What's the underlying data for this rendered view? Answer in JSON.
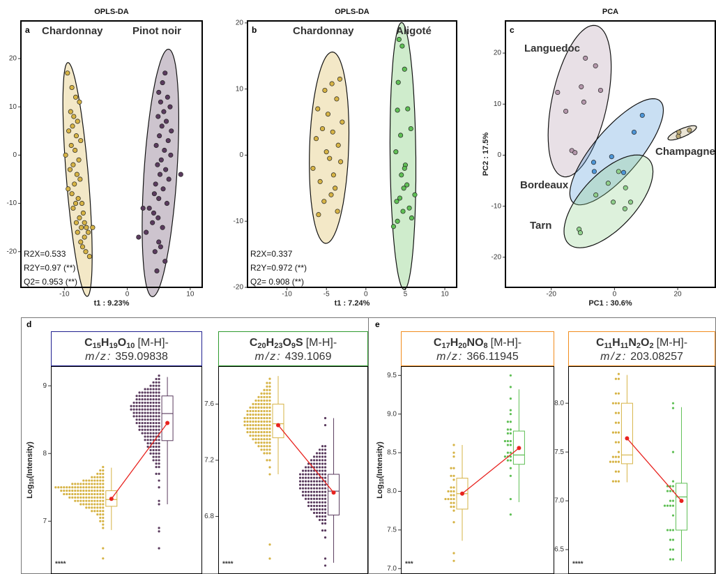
{
  "chart_data": [
    {
      "type": "scatter",
      "panel": "a",
      "title": "OPLS-DA",
      "xlabel": "t1 : 9.23%",
      "xlim": [
        -16.9,
        11.9
      ],
      "ylim": [
        -27.4,
        27.8
      ],
      "xticks": [
        -10,
        0,
        10
      ],
      "yticks": [
        -20,
        -10,
        0,
        10,
        20
      ],
      "annotations": [
        "R2X=0.533",
        "R2Y=0.97 (**)",
        "Q2= 0.953 (**)"
      ],
      "series": [
        {
          "name": "Chardonnay",
          "color": "#d6b345",
          "x": [
            -9.5,
            -8.8,
            -8.2,
            -7.6,
            -9.0,
            -8.5,
            -7.9,
            -8.7,
            -9.3,
            -8.1,
            -7.4,
            -8.9,
            -8.3,
            -9.8,
            -7.7,
            -8.6,
            -9.1,
            -8.0,
            -7.5,
            -8.4,
            -9.4,
            -8.8,
            -7.8,
            -8.2,
            -7.2,
            -8.6,
            -7.0,
            -7.6,
            -8.1,
            -6.8,
            -7.3,
            -6.5,
            -7.9,
            -5.5,
            -6.2,
            -6.8,
            -7.4,
            -7.1,
            -6.0,
            -6.6
          ],
          "y": [
            17,
            14,
            12,
            11,
            9,
            8,
            7,
            6,
            5,
            4,
            3,
            2,
            1,
            0,
            -1,
            -2,
            -3,
            -4,
            -5,
            -6,
            -7,
            -8,
            -9,
            -10,
            -10,
            -11,
            -12,
            -13,
            -14,
            -14,
            -15,
            -15,
            -16,
            -15,
            -16,
            -17,
            -18,
            -19,
            -21,
            -20
          ]
        },
        {
          "name": "Pinot noir",
          "color": "#5a3b5e",
          "x": [
            6.0,
            5.6,
            5.0,
            6.4,
            5.3,
            6.8,
            5.8,
            4.9,
            6.2,
            5.5,
            7.0,
            5.1,
            6.5,
            4.6,
            5.9,
            6.9,
            5.4,
            4.8,
            6.1,
            5.2,
            6.6,
            4.5,
            5.7,
            4.3,
            5.0,
            6.3,
            3.5,
            4.2,
            2.5,
            1.8,
            3.0,
            4.0,
            5.6,
            5.0,
            4.4,
            6.0,
            8.5,
            4.7,
            5.3,
            4.9
          ],
          "y": [
            17,
            15,
            13,
            12,
            11,
            10,
            9,
            8,
            7,
            6,
            5,
            4,
            3,
            2,
            1,
            0,
            -1,
            -2,
            -3,
            -4,
            -5,
            -6,
            -7,
            -8,
            -9,
            -10,
            -11,
            -12,
            -11,
            -17,
            -16,
            -14,
            -15,
            -18,
            -20,
            -22,
            -4,
            -24,
            -19,
            -13
          ]
        }
      ]
    },
    {
      "type": "scatter",
      "panel": "b",
      "title": "OPLS-DA",
      "xlabel": "t1 : 7.24%",
      "xlim": [
        -15.0,
        11.5
      ],
      "ylim": [
        -20.0,
        20.3
      ],
      "xticks": [
        -10,
        -5,
        0,
        5,
        10
      ],
      "yticks": [
        -20,
        -10,
        0,
        10,
        20
      ],
      "annotations": [
        "R2X=0.337",
        "R2Y=0.972 (**)",
        "Q2= 0.908 (**)"
      ],
      "series": [
        {
          "name": "Chardonnay",
          "color": "#d6b345",
          "x": [
            -3.3,
            -4.3,
            -5.2,
            -3.7,
            -6.1,
            -4.8,
            -3.0,
            -5.5,
            -4.2,
            -6.3,
            -3.5,
            -5.0,
            -4.6,
            -3.2,
            -6.7,
            -4.1,
            -5.8,
            -3.9,
            -4.4,
            -5.3,
            -3.6,
            -6.0
          ],
          "y": [
            11.5,
            10.8,
            9.8,
            8.5,
            7,
            6.2,
            5,
            4,
            3.5,
            2.5,
            1.5,
            0.5,
            -0.5,
            -1,
            -2,
            -3,
            -4,
            -5,
            -6,
            -7,
            -8.5,
            -9
          ]
        },
        {
          "name": "Aligoté",
          "color": "#5fbf55",
          "x": [
            4.2,
            4.6,
            4.9,
            4.1,
            5.3,
            4.0,
            5.7,
            4.4,
            3.8,
            5.0,
            4.5,
            5.2,
            4.8,
            6.2,
            4.3,
            3.9,
            5.5,
            4.7,
            4.0,
            3.5,
            5.8,
            4.9
          ],
          "y": [
            17.5,
            16.5,
            13,
            11,
            7,
            6.8,
            4,
            3,
            0.5,
            -1.5,
            -3,
            -4.5,
            -5,
            -6,
            -6.5,
            -7,
            -8,
            -8.5,
            -10,
            -10.8,
            -9.5,
            -2
          ]
        }
      ]
    },
    {
      "type": "scatter",
      "panel": "c",
      "title": "PCA",
      "xlabel": "PC1 : 30.6%",
      "ylabel": "PC2 : 17.5%",
      "xlim": [
        -34.5,
        31.9
      ],
      "ylim": [
        -25.9,
        26.3
      ],
      "xticks": [
        -20,
        0,
        20
      ],
      "yticks": [
        -20,
        -10,
        0,
        10,
        20
      ],
      "series": [
        {
          "name": "Languedoc",
          "color": "#b497ab",
          "x": [
            -18.0,
            -15.4,
            -10.5,
            -9.2,
            -9.7,
            -4.4,
            -13.5,
            -12.5,
            -6.0
          ],
          "y": [
            12.3,
            8.6,
            13.4,
            19.0,
            10.4,
            12.7,
            0.9,
            0.5,
            17.5
          ]
        },
        {
          "name": "Bordeaux",
          "color": "#4d95d6",
          "x": [
            -6.6,
            -6.4,
            -0.9,
            2.9,
            6.2,
            8.8
          ],
          "y": [
            -1.4,
            -3.2,
            -0.3,
            -3.4,
            4.5,
            7.8
          ]
        },
        {
          "name": "Tarn",
          "color": "#8fcf8b",
          "x": [
            -5.9,
            -11.2,
            -10.8,
            -0.4,
            1.3,
            3.5,
            5.1,
            3.3,
            -2.0
          ],
          "y": [
            -7.8,
            -14.5,
            -15.2,
            -9.2,
            -3.2,
            -6.4,
            -9.2,
            -10.5,
            -5.5
          ]
        },
        {
          "name": "Champagne",
          "color": "#b9a772",
          "x": [
            20.4,
            20.2,
            23.7
          ],
          "y": [
            4.5,
            3.7,
            4.9
          ]
        }
      ]
    },
    {
      "type": "box",
      "panel": "d",
      "significance": "****",
      "ylabel_parts": [
        "Log",
        "10",
        "(Intensity)"
      ],
      "header": {
        "formula": [
          "C",
          "15",
          "H",
          "19",
          "O",
          "10"
        ],
        "ion": "[M-H]-",
        "mz_label": "m/z:",
        "mz": "359.09838",
        "color": "#1f1f8f"
      },
      "ylim": [
        6.22,
        9.29
      ],
      "yticks": [
        7,
        8,
        9
      ],
      "series": [
        {
          "color": "#d6b345",
          "dots": {
            "values": [
              7.8,
              7.75,
              7.7,
              7.65,
              7.6,
              7.55,
              7.5,
              7.45,
              7.4,
              7.35,
              7.3,
              7.25,
              7.2,
              7.15,
              7.1,
              7.05,
              7.0,
              6.95,
              6.9,
              6.6,
              6.45
            ],
            "counts": [
              1,
              2,
              3,
              5,
              8,
              12,
              18,
              16,
              15,
              13,
              11,
              9,
              7,
              5,
              3,
              2,
              2,
              1,
              1,
              1,
              1
            ]
          },
          "box": {
            "whislo": 6.87,
            "q1": 7.22,
            "med": 7.32,
            "q3": 7.45,
            "whishi": 7.79
          },
          "mean": 7.33
        },
        {
          "color": "#5a3b5e",
          "dots": {
            "values": [
              9.15,
              9.1,
              9.05,
              9.0,
              8.95,
              8.9,
              8.85,
              8.8,
              8.75,
              8.7,
              8.65,
              8.6,
              8.55,
              8.5,
              8.45,
              8.4,
              8.35,
              8.3,
              8.25,
              8.2,
              8.15,
              8.1,
              8.05,
              8.0,
              7.95,
              7.9,
              7.85,
              7.8,
              7.7,
              7.6,
              7.5,
              7.3,
              7.25,
              6.9,
              6.85,
              6.6
            ],
            "counts": [
              1,
              2,
              3,
              4,
              6,
              8,
              9,
              9,
              10,
              11,
              11,
              10,
              10,
              9,
              9,
              8,
              8,
              7,
              6,
              6,
              5,
              5,
              4,
              4,
              3,
              3,
              2,
              2,
              2,
              1,
              1,
              1,
              1,
              1,
              1,
              1
            ]
          },
          "box": {
            "whislo": 7.25,
            "q1": 8.19,
            "med": 8.59,
            "q3": 8.85,
            "whishi": 9.13
          },
          "mean": 8.45
        }
      ]
    },
    {
      "type": "box",
      "significance": "****",
      "header": {
        "formula": [
          "C",
          "20",
          "H",
          "23",
          "O",
          "9",
          "S"
        ],
        "ion": "[M-H]-",
        "mz_label": "m/z:",
        "mz": "439.1069",
        "color": "#2e9a2e"
      },
      "ylim": [
        6.39,
        7.87
      ],
      "yticks": [
        6.8,
        7.2,
        7.6
      ],
      "series": [
        {
          "color": "#d6b345",
          "dots": {
            "values": [
              7.78,
              7.75,
              7.725,
              7.7,
              7.675,
              7.65,
              7.625,
              7.6,
              7.575,
              7.55,
              7.525,
              7.5,
              7.475,
              7.45,
              7.425,
              7.4,
              7.375,
              7.35,
              7.325,
              7.3,
              7.275,
              7.25,
              7.2,
              7.15,
              7.1,
              6.6,
              6.5
            ],
            "counts": [
              1,
              2,
              2,
              3,
              4,
              5,
              6,
              7,
              8,
              9,
              9,
              10,
              10,
              10,
              9,
              9,
              8,
              7,
              6,
              5,
              4,
              3,
              2,
              1,
              1,
              1,
              1
            ]
          },
          "box": {
            "whislo": 7.1,
            "q1": 7.36,
            "med": 7.46,
            "q3": 7.6,
            "whishi": 7.8
          },
          "mean": 7.45
        },
        {
          "color": "#5a3b5e",
          "dots": {
            "values": [
              7.5,
              7.45,
              7.3,
              7.275,
              7.25,
              7.225,
              7.2,
              7.175,
              7.15,
              7.125,
              7.1,
              7.075,
              7.05,
              7.025,
              7.0,
              6.975,
              6.95,
              6.925,
              6.9,
              6.875,
              6.85,
              6.825,
              6.8,
              6.775,
              6.75,
              6.7,
              6.65,
              6.5,
              6.45
            ],
            "counts": [
              1,
              1,
              2,
              3,
              4,
              5,
              6,
              7,
              8,
              9,
              10,
              10,
              10,
              10,
              10,
              9,
              9,
              8,
              7,
              7,
              6,
              5,
              4,
              3,
              2,
              2,
              1,
              1,
              1
            ]
          },
          "box": {
            "whislo": 6.47,
            "q1": 6.81,
            "med": 6.98,
            "q3": 7.1,
            "whishi": 7.5
          },
          "mean": 6.97
        }
      ]
    },
    {
      "type": "box",
      "panel": "e",
      "significance": "***",
      "ylabel_parts": [
        "Log",
        "10",
        "(Intensity)"
      ],
      "header": {
        "formula": [
          "C",
          "17",
          "H",
          "20",
          "NO",
          "8"
        ],
        "ion": "[M-H]-",
        "mz_label": "m/z:",
        "mz": "366.11945",
        "color": "#f28c1c"
      },
      "ylim": [
        6.93,
        9.62
      ],
      "yticks": [
        {
          "value": 7,
          "label": "7.0"
        },
        7.5,
        {
          "value": 8,
          "label": "8.0"
        },
        8.5,
        {
          "value": 9,
          "label": "9.0"
        },
        9.5
      ],
      "series": [
        {
          "color": "#d6b345",
          "dots": {
            "values": [
              8.6,
              8.5,
              8.45,
              8.3,
              8.2,
              8.15,
              8.05,
              8.0,
              7.95,
              7.9,
              7.85,
              7.8,
              7.75,
              7.6,
              7.2,
              7.1
            ],
            "counts": [
              1,
              1,
              1,
              2,
              2,
              1,
              2,
              3,
              2,
              4,
              2,
              2,
              1,
              1,
              1,
              1
            ]
          },
          "box": {
            "whislo": 7.36,
            "q1": 7.77,
            "med": 7.97,
            "q3": 8.17,
            "whishi": 8.6
          },
          "mean": 7.97
        },
        {
          "color": "#5fbf55",
          "dots": {
            "values": [
              9.5,
              9.35,
              9.2,
              9.05,
              9.0,
              8.9,
              8.8,
              8.75,
              8.65,
              8.6,
              8.5,
              8.45,
              8.4,
              8.3,
              8.2,
              7.9,
              7.7
            ],
            "counts": [
              1,
              1,
              1,
              1,
              1,
              2,
              2,
              2,
              3,
              2,
              2,
              3,
              2,
              1,
              1,
              1,
              1
            ]
          },
          "box": {
            "whislo": 7.86,
            "q1": 8.35,
            "med": 8.47,
            "q3": 8.78,
            "whishi": 9.32
          },
          "mean": 8.56
        }
      ]
    },
    {
      "type": "box",
      "significance": "****",
      "header": {
        "formula": [
          "C",
          "11",
          "H",
          "11",
          "N",
          "2",
          "O",
          "2"
        ],
        "ion": "[M-H]-",
        "mz_label": "m/z:",
        "mz": "203.08257",
        "color": "#f28c1c"
      },
      "ylim": [
        6.25,
        8.38
      ],
      "yticks": [
        6.5,
        {
          "value": 7,
          "label": "7.0"
        },
        7.5,
        {
          "value": 8,
          "label": "8.0"
        }
      ],
      "series": [
        {
          "color": "#d6b345",
          "dots": {
            "values": [
              8.3,
              8.25,
              8.1,
              8.0,
              7.9,
              7.8,
              7.7,
              7.6,
              7.5,
              7.45,
              7.4,
              7.3,
              7.2
            ],
            "counts": [
              1,
              2,
              2,
              3,
              2,
              2,
              3,
              2,
              1,
              3,
              4,
              2,
              3
            ]
          },
          "box": {
            "whislo": 7.19,
            "q1": 7.38,
            "med": 7.47,
            "q3": 8.0,
            "whishi": 8.29
          },
          "mean": 7.64
        },
        {
          "color": "#5fbf55",
          "dots": {
            "values": [
              8.0,
              7.95,
              7.5,
              7.2,
              7.15,
              7.1,
              7.0,
              6.95,
              6.85,
              6.7,
              6.6,
              6.5,
              6.4
            ],
            "counts": [
              1,
              1,
              1,
              1,
              3,
              3,
              2,
              4,
              1,
              3,
              2,
              2,
              2
            ]
          },
          "box": {
            "whislo": 6.38,
            "q1": 6.7,
            "med": 7.04,
            "q3": 7.18,
            "whishi": 7.96
          },
          "mean": 7.0
        }
      ]
    }
  ]
}
